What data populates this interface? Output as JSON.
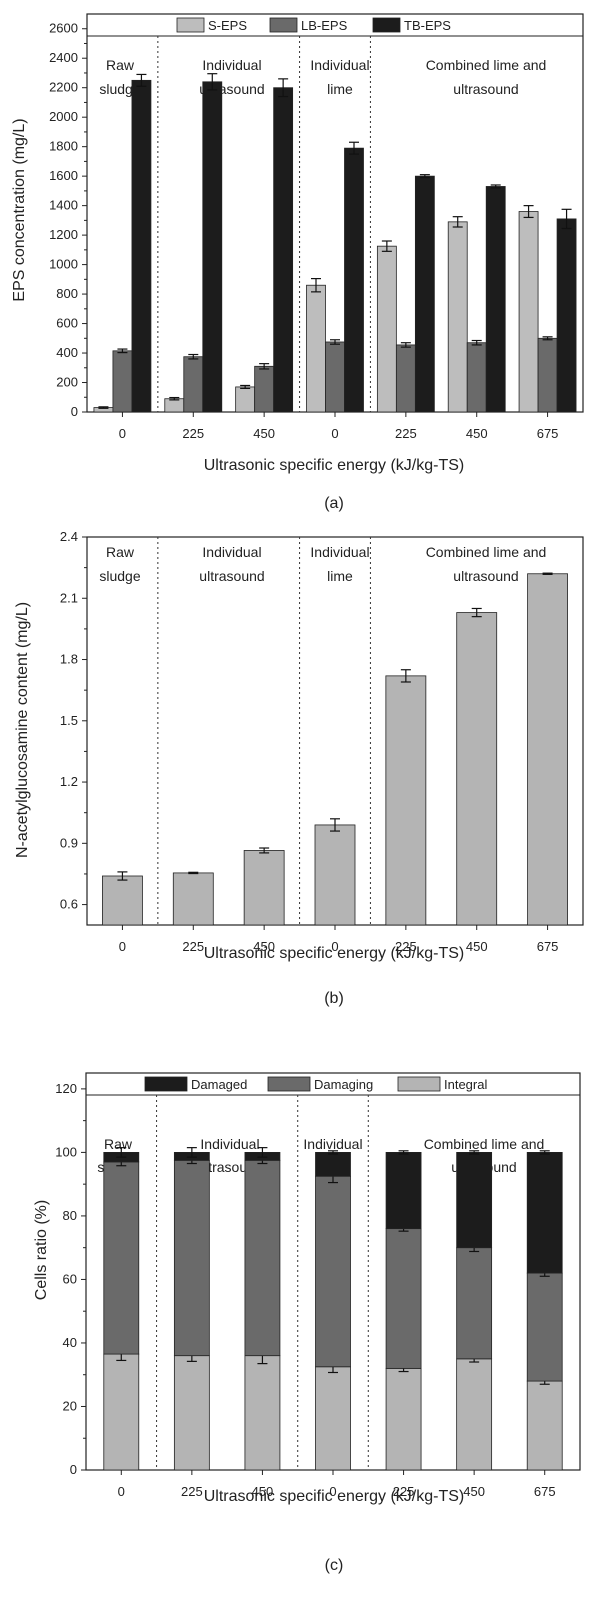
{
  "chart_data": [
    {
      "id": "a",
      "type": "bar",
      "caption": "(a)",
      "xlabel": "Ultrasonic specific energy (kJ/kg-TS)",
      "ylabel": "EPS concentration (mg/L)",
      "ylim": [
        0,
        2700
      ],
      "yticks": [
        0,
        200,
        400,
        600,
        800,
        1000,
        1200,
        1400,
        1600,
        1800,
        2000,
        2200,
        2400,
        2600
      ],
      "categories": [
        "0",
        "225",
        "450",
        "0",
        "225",
        "450",
        "675"
      ],
      "groups": [
        "Raw sludge",
        "Individual ultrasound",
        "Individual lime",
        "Combined lime and ultrasound"
      ],
      "series": [
        {
          "name": "S-EPS",
          "color": "#bdbdbd",
          "values": [
            30,
            90,
            170,
            860,
            1125,
            1290,
            1360
          ],
          "errors": [
            5,
            8,
            10,
            45,
            35,
            35,
            40
          ]
        },
        {
          "name": "LB-EPS",
          "color": "#6a6a6a",
          "values": [
            415,
            375,
            310,
            475,
            455,
            470,
            500
          ],
          "errors": [
            12,
            15,
            18,
            15,
            15,
            15,
            10
          ]
        },
        {
          "name": "TB-EPS",
          "color": "#1c1c1c",
          "values": [
            2250,
            2240,
            2200,
            1790,
            1600,
            1530,
            1310
          ],
          "errors": [
            40,
            55,
            60,
            40,
            10,
            10,
            65
          ]
        }
      ],
      "legend": "top"
    },
    {
      "id": "b",
      "type": "bar",
      "caption": "(b)",
      "xlabel": "Ultrasonic specific energy (kJ/kg-TS)",
      "ylabel": "N-acetylglucosamine content (mg/L)",
      "ylim": [
        0.5,
        2.4
      ],
      "yticks": [
        0.6,
        0.9,
        1.2,
        1.5,
        1.8,
        2.1,
        2.4
      ],
      "categories": [
        "0",
        "225",
        "450",
        "0",
        "225",
        "450",
        "675"
      ],
      "groups": [
        "Raw sludge",
        "Individual ultrasound",
        "Individual lime",
        "Combined lime and ultrasound"
      ],
      "series": [
        {
          "color": "#b4b4b4",
          "values": [
            0.74,
            0.755,
            0.865,
            0.99,
            1.72,
            2.03,
            2.22
          ],
          "errors": [
            0.02,
            0.003,
            0.012,
            0.03,
            0.03,
            0.02,
            0.003
          ]
        }
      ]
    },
    {
      "id": "c",
      "type": "stacked-bar",
      "caption": "(c)",
      "xlabel": "Ultrasonic specific energy (kJ/kg-TS)",
      "ylabel": "Cells ratio (%)",
      "ylim": [
        0,
        125
      ],
      "yticks": [
        0,
        20,
        40,
        60,
        80,
        100,
        120
      ],
      "categories": [
        "0",
        "225",
        "450",
        "0",
        "225",
        "450",
        "675"
      ],
      "groups": [
        "Raw sludge",
        "Individual ultrasound",
        "Individual lime",
        "Combined lime and ultrasound"
      ],
      "legend": "top",
      "legend_order": [
        "Damaged",
        "Damaging",
        "Integral"
      ],
      "series": [
        {
          "name": "Integral",
          "color": "#b4b4b4",
          "values": [
            36.5,
            36,
            36,
            32.5,
            32,
            35,
            28
          ],
          "errors": [
            2,
            1.8,
            2.5,
            1.8,
            1,
            1,
            1
          ]
        },
        {
          "name": "Damaging",
          "color": "#6a6a6a",
          "values": [
            60.5,
            61.5,
            61.5,
            60,
            44,
            35,
            34
          ],
          "errors": [
            1.2,
            1,
            1,
            2,
            0.8,
            1.2,
            1
          ]
        },
        {
          "name": "Damaged",
          "color": "#1c1c1c",
          "values": [
            3,
            2.5,
            2.5,
            7.5,
            24,
            30,
            38
          ],
          "errors": [
            1.5,
            1.5,
            1.5,
            0.5,
            0.5,
            0.5,
            0.5
          ]
        }
      ]
    }
  ]
}
